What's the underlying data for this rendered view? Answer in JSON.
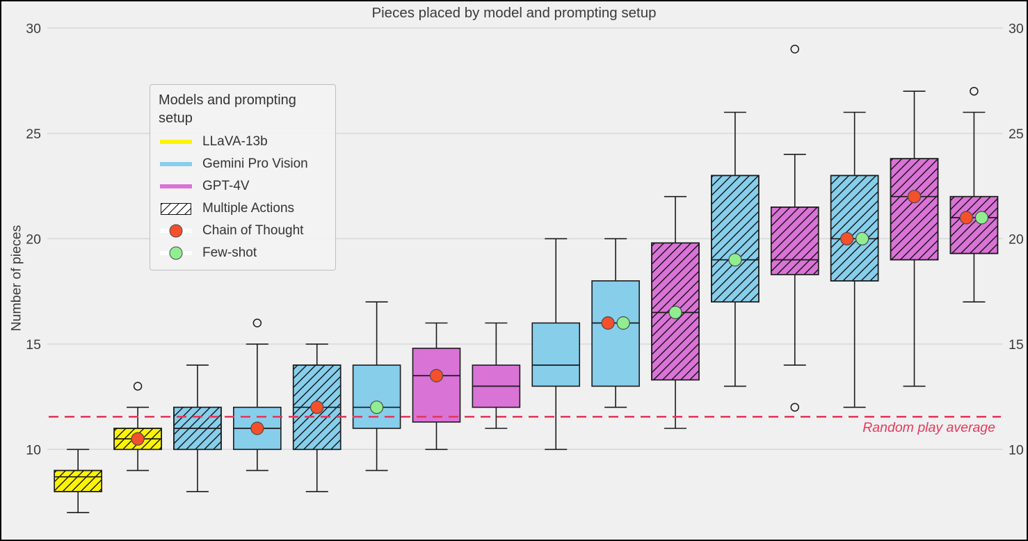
{
  "colors": {
    "llava": "#fcf403",
    "gemini": "#87ceeb",
    "gpt4v": "#d973d6",
    "chain_of_thought_marker": "#f4502c",
    "few_shot_marker": "#90ee90",
    "box_edge": "#1a1a1a",
    "grid": "#d8d8d8",
    "text": "#3a3a3a",
    "reference_line": "#e23a5e",
    "background": "#f0f0f0"
  },
  "legend": {
    "title": "Models and prompting setup",
    "items": [
      {
        "label": "LLaVA-13b",
        "type": "line",
        "color": "#fcf403"
      },
      {
        "label": "Gemini Pro Vision",
        "type": "line",
        "color": "#87ceeb"
      },
      {
        "label": "GPT-4V",
        "type": "line",
        "color": "#d973d6"
      },
      {
        "label": "Multiple Actions",
        "type": "hatch",
        "color": "#ffffff"
      },
      {
        "label": "Chain of Thought",
        "type": "dot",
        "color": "#f4502c"
      },
      {
        "label": "Few-shot",
        "type": "dot",
        "color": "#90ee90"
      }
    ]
  },
  "chart_data": {
    "type": "box",
    "title": "Pieces placed by model and prompting setup",
    "ylabel": "Number of pieces",
    "yticks": [
      30,
      25,
      20,
      15,
      10
    ],
    "ylim": [
      5.9,
      30.3
    ],
    "grid": true,
    "legend_position": "upper-left",
    "reference_line": {
      "label": "Random play average",
      "value": 11.55,
      "style": "dashed",
      "color": "#e23a5e"
    },
    "boxes": [
      {
        "model": "LLaVA-13b",
        "color": "#fcf403",
        "multiple_actions": true,
        "low": 7,
        "q1": 8,
        "median": 8.7,
        "q3": 9,
        "high": 10,
        "outliers": [],
        "cot_marker": null,
        "few_shot_marker": null
      },
      {
        "model": "LLaVA-13b",
        "color": "#fcf403",
        "multiple_actions": true,
        "low": 9,
        "q1": 10,
        "median": 10.5,
        "q3": 11,
        "high": 12,
        "outliers": [
          13
        ],
        "cot_marker": 10.5,
        "few_shot_marker": null
      },
      {
        "model": "Gemini Pro Vision",
        "color": "#87ceeb",
        "multiple_actions": true,
        "low": 8,
        "q1": 10,
        "median": 11,
        "q3": 12,
        "high": 14,
        "outliers": [],
        "cot_marker": null,
        "few_shot_marker": null
      },
      {
        "model": "Gemini Pro Vision",
        "color": "#87ceeb",
        "multiple_actions": false,
        "low": 9,
        "q1": 10,
        "median": 11,
        "q3": 12,
        "high": 15,
        "outliers": [
          16
        ],
        "cot_marker": 11,
        "few_shot_marker": null
      },
      {
        "model": "Gemini Pro Vision",
        "color": "#87ceeb",
        "multiple_actions": true,
        "low": 8,
        "q1": 10,
        "median": 12,
        "q3": 14,
        "high": 15,
        "outliers": [],
        "cot_marker": 12,
        "few_shot_marker": null
      },
      {
        "model": "Gemini Pro Vision",
        "color": "#87ceeb",
        "multiple_actions": false,
        "low": 9,
        "q1": 11,
        "median": 12,
        "q3": 14,
        "high": 17,
        "outliers": [],
        "cot_marker": null,
        "few_shot_marker": 12
      },
      {
        "model": "GPT-4V",
        "color": "#d973d6",
        "multiple_actions": false,
        "low": 10,
        "q1": 11.3,
        "median": 13.5,
        "q3": 14.8,
        "high": 16,
        "outliers": [],
        "cot_marker": 13.5,
        "few_shot_marker": null
      },
      {
        "model": "GPT-4V",
        "color": "#d973d6",
        "multiple_actions": false,
        "low": 11,
        "q1": 12,
        "median": 13,
        "q3": 14,
        "high": 16,
        "outliers": [],
        "cot_marker": null,
        "few_shot_marker": null
      },
      {
        "model": "Gemini Pro Vision",
        "color": "#87ceeb",
        "multiple_actions": false,
        "low": 10,
        "q1": 13,
        "median": 14,
        "q3": 16,
        "high": 20,
        "outliers": [],
        "cot_marker": null,
        "few_shot_marker": null
      },
      {
        "model": "Gemini Pro Vision",
        "color": "#87ceeb",
        "multiple_actions": false,
        "low": 12,
        "q1": 13,
        "median": 16,
        "q3": 18,
        "high": 20,
        "outliers": [],
        "cot_marker": 16,
        "few_shot_marker": 16
      },
      {
        "model": "GPT-4V",
        "color": "#d973d6",
        "multiple_actions": true,
        "low": 11,
        "q1": 13.3,
        "median": 16.5,
        "q3": 19.8,
        "high": 22,
        "outliers": [],
        "cot_marker": null,
        "few_shot_marker": 16.5
      },
      {
        "model": "Gemini Pro Vision",
        "color": "#87ceeb",
        "multiple_actions": true,
        "low": 13,
        "q1": 17,
        "median": 19,
        "q3": 23,
        "high": 26,
        "outliers": [],
        "cot_marker": null,
        "few_shot_marker": 19
      },
      {
        "model": "GPT-4V",
        "color": "#d973d6",
        "multiple_actions": true,
        "low": 14,
        "q1": 18.3,
        "median": 19,
        "q3": 21.5,
        "high": 24,
        "outliers": [
          29,
          12
        ],
        "cot_marker": null,
        "few_shot_marker": null
      },
      {
        "model": "Gemini Pro Vision",
        "color": "#87ceeb",
        "multiple_actions": true,
        "low": 12,
        "q1": 18,
        "median": 20,
        "q3": 23,
        "high": 26,
        "outliers": [],
        "cot_marker": 20,
        "few_shot_marker": 20
      },
      {
        "model": "GPT-4V",
        "color": "#d973d6",
        "multiple_actions": true,
        "low": 13,
        "q1": 19,
        "median": 22,
        "q3": 23.8,
        "high": 27,
        "outliers": [],
        "cot_marker": 22,
        "few_shot_marker": null
      },
      {
        "model": "GPT-4V",
        "color": "#d973d6",
        "multiple_actions": true,
        "low": 17,
        "q1": 19.3,
        "median": 21,
        "q3": 22,
        "high": 26,
        "outliers": [
          27
        ],
        "cot_marker": 21,
        "few_shot_marker": 21
      }
    ]
  }
}
